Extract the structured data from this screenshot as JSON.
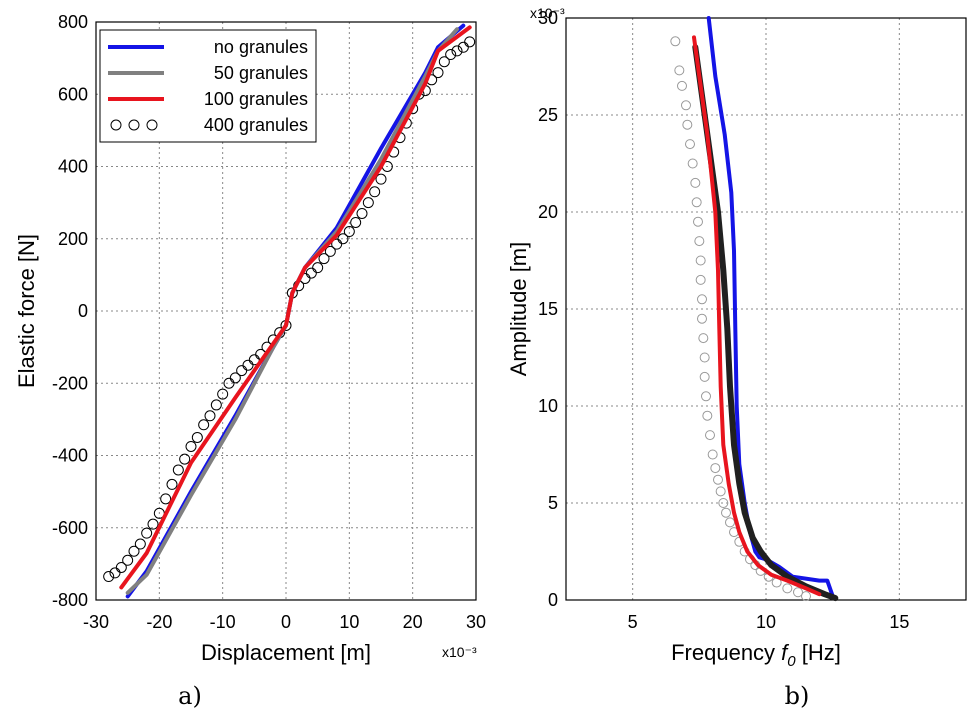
{
  "chart_data": [
    {
      "type": "line",
      "panel_label": "a)",
      "xlabel": "Displacement [m]",
      "ylabel": "Elastic force [N]",
      "x_multiplier": "x10⁻³",
      "xlim": [
        -30,
        30
      ],
      "ylim": [
        -800,
        800
      ],
      "xticks": [
        -30,
        -20,
        -10,
        0,
        10,
        20,
        30
      ],
      "yticks": [
        -800,
        -600,
        -400,
        -200,
        0,
        200,
        400,
        600,
        800
      ],
      "grid": true,
      "legend_position": "top-left",
      "series": [
        {
          "name": "no granules",
          "color": "#1414e6",
          "style": "line",
          "x": [
            -25,
            -22,
            -15,
            -8,
            -2,
            0,
            1,
            3,
            8,
            15,
            22,
            24,
            28
          ],
          "y": [
            -790,
            -720,
            -500,
            -290,
            -100,
            -40,
            50,
            120,
            230,
            450,
            660,
            730,
            790
          ]
        },
        {
          "name": "50 granules",
          "color": "#808080",
          "style": "line",
          "x": [
            -25,
            -22,
            -15,
            -8,
            -2,
            0,
            1,
            3,
            8,
            15,
            22,
            24,
            27
          ],
          "y": [
            -780,
            -730,
            -510,
            -300,
            -100,
            -40,
            50,
            120,
            220,
            420,
            650,
            720,
            780
          ]
        },
        {
          "name": "100 granules",
          "color": "#e8141e",
          "style": "line",
          "x": [
            -26,
            -22,
            -15,
            -8,
            -2,
            0,
            1,
            3,
            8,
            15,
            22,
            24,
            29
          ],
          "y": [
            -765,
            -670,
            -420,
            -240,
            -90,
            -40,
            50,
            120,
            210,
            400,
            630,
            720,
            785
          ]
        },
        {
          "name": "400 granules",
          "color": "#000000",
          "style": "markers",
          "x": [
            -28,
            -27,
            -26,
            -25,
            -24,
            -23,
            -22,
            -21,
            -20,
            -19,
            -18,
            -17,
            -16,
            -15,
            -14,
            -13,
            -12,
            -11,
            -10,
            -9,
            -8,
            -7,
            -6,
            -5,
            -4,
            -3,
            -2,
            -1,
            0,
            1,
            2,
            3,
            4,
            5,
            6,
            7,
            8,
            9,
            10,
            11,
            12,
            13,
            14,
            15,
            16,
            17,
            18,
            19,
            20,
            21,
            22,
            23,
            24,
            25,
            26,
            27,
            28,
            29
          ],
          "y": [
            -735,
            -725,
            -710,
            -690,
            -665,
            -645,
            -615,
            -590,
            -560,
            -520,
            -480,
            -440,
            -410,
            -375,
            -350,
            -315,
            -290,
            -260,
            -230,
            -200,
            -185,
            -165,
            -150,
            -135,
            -120,
            -100,
            -80,
            -60,
            -40,
            50,
            70,
            90,
            105,
            120,
            145,
            165,
            185,
            200,
            220,
            245,
            270,
            300,
            330,
            365,
            400,
            440,
            480,
            520,
            560,
            600,
            610,
            640,
            660,
            690,
            710,
            720,
            730,
            745
          ]
        }
      ]
    },
    {
      "type": "line",
      "panel_label": "b)",
      "xlabel_main": "Frequency ",
      "xlabel_italic": "f",
      "xlabel_sub": "0",
      "xlabel_unit": " [Hz]",
      "ylabel": "Amplitude [m]",
      "y_multiplier": "x10⁻³",
      "xlim": [
        2.5,
        17.5
      ],
      "ylim": [
        0,
        30
      ],
      "xticks": [
        5,
        10,
        15
      ],
      "yticks": [
        0,
        5,
        10,
        15,
        20,
        25,
        30
      ],
      "grid": true,
      "series": [
        {
          "name": "no granules",
          "color": "#1414e6",
          "style": "line",
          "x": [
            7.85,
            8.1,
            8.45,
            8.7,
            8.8,
            8.85,
            8.9,
            9.0,
            9.2,
            9.4,
            9.6,
            9.75,
            10.0,
            10.5,
            11.0,
            12.0,
            12.3,
            12.5
          ],
          "y": [
            30,
            27,
            24,
            21,
            18,
            14,
            10,
            7,
            5,
            3.5,
            2.5,
            2.2,
            2.1,
            1.7,
            1.2,
            1.0,
            1.0,
            0.2
          ]
        },
        {
          "name": "100 granules",
          "color": "#e8141e",
          "style": "line",
          "x": [
            7.3,
            7.5,
            7.8,
            8.1,
            8.2,
            8.25,
            8.3,
            8.4,
            8.6,
            8.8,
            9.0,
            9.3,
            9.7,
            10.2,
            10.8,
            11.5,
            12.0
          ],
          "y": [
            29,
            27,
            24,
            20,
            17,
            14,
            11,
            8,
            6,
            4.5,
            3.5,
            2.5,
            1.8,
            1.3,
            1.0,
            0.6,
            0.3
          ]
        },
        {
          "name": "50 granules",
          "color": "#202020",
          "style": "dense-markers",
          "x": [
            7.35,
            7.6,
            7.9,
            8.2,
            8.4,
            8.55,
            8.65,
            8.8,
            9.0,
            9.2,
            9.5,
            9.8,
            10.2,
            10.8,
            11.5,
            12.2,
            12.6
          ],
          "y": [
            28.5,
            26,
            23,
            20,
            17,
            14,
            11,
            8,
            6,
            4.5,
            3.2,
            2.5,
            1.8,
            1.2,
            0.7,
            0.3,
            0.1
          ]
        },
        {
          "name": "400 granules",
          "color": "#999999",
          "style": "markers",
          "x": [
            6.6,
            6.75,
            6.85,
            7.0,
            7.05,
            7.15,
            7.25,
            7.35,
            7.4,
            7.45,
            7.5,
            7.55,
            7.55,
            7.6,
            7.6,
            7.65,
            7.7,
            7.7,
            7.75,
            7.8,
            7.9,
            8.0,
            8.1,
            8.2,
            8.3,
            8.4,
            8.5,
            8.65,
            8.8,
            9.0,
            9.2,
            9.4,
            9.6,
            9.8,
            10.1,
            10.4,
            10.8,
            11.2,
            11.5
          ],
          "y": [
            28.8,
            27.3,
            26.5,
            25.5,
            24.5,
            23.5,
            22.5,
            21.5,
            20.5,
            19.5,
            18.5,
            17.5,
            16.5,
            15.5,
            14.5,
            13.5,
            12.5,
            11.5,
            10.5,
            9.5,
            8.5,
            7.5,
            6.8,
            6.2,
            5.6,
            5.0,
            4.5,
            4.0,
            3.5,
            3.0,
            2.5,
            2.1,
            1.8,
            1.5,
            1.2,
            0.9,
            0.6,
            0.4,
            0.2
          ]
        }
      ]
    }
  ]
}
